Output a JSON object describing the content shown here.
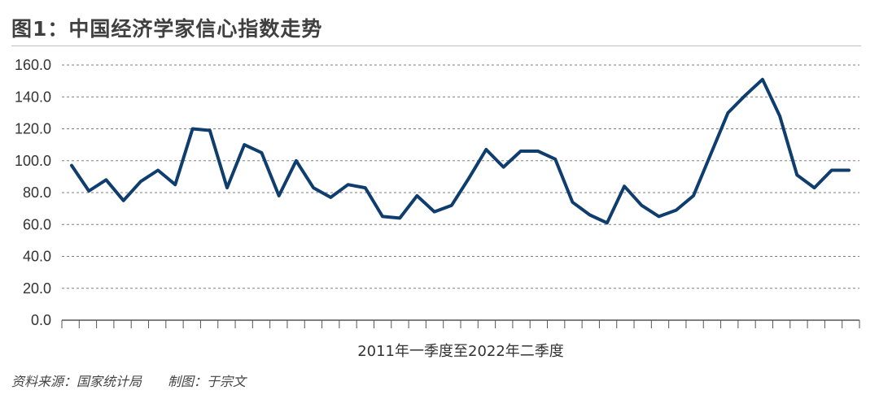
{
  "title": "图1：中国经济学家信心指数走势",
  "source": "资料来源：国家统计局",
  "author": "制图：于宗文",
  "colors": {
    "line": "#0f3d6e",
    "grid": "#7f7f7f",
    "axis": "#555555"
  },
  "chart_data": {
    "type": "line",
    "title": "图1：中国经济学家信心指数走势",
    "xlabel": "2011年一季度至2022年二季度",
    "ylabel": "",
    "ylim": [
      0,
      160
    ],
    "yticks": [
      "0.0",
      "20.0",
      "40.0",
      "60.0",
      "80.0",
      "100.0",
      "120.0",
      "140.0",
      "160.0"
    ],
    "grid": true,
    "legend": "none",
    "series": [
      {
        "values": [
          97,
          81,
          88,
          75,
          87,
          94,
          85,
          120,
          119,
          83,
          110,
          105,
          78,
          100,
          83,
          77,
          85,
          83,
          65,
          64,
          78,
          68,
          72,
          89,
          107,
          96,
          106,
          106,
          101,
          74,
          66,
          61,
          84,
          72,
          65,
          69,
          78,
          104,
          130,
          141,
          151,
          128,
          91,
          83,
          94,
          94
        ]
      }
    ]
  }
}
